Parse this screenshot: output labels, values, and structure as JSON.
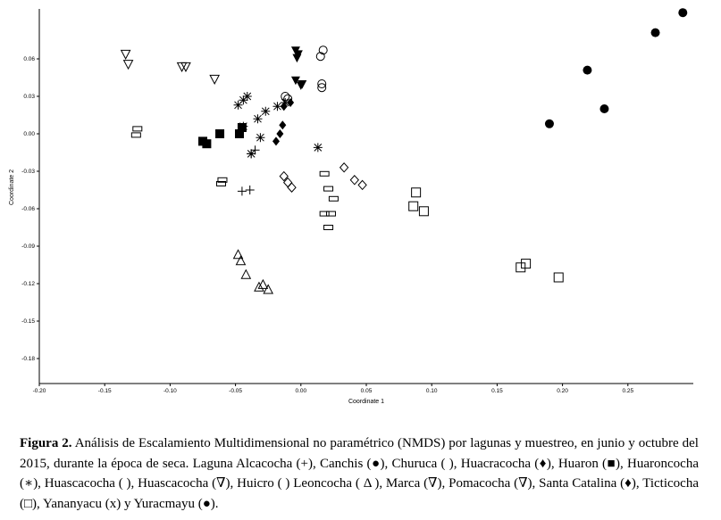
{
  "chart_data": {
    "type": "scatter",
    "title": "",
    "xlabel": "Coordinate 1",
    "ylabel": "Coordinate 2",
    "xlim": [
      -0.2,
      0.3
    ],
    "ylim": [
      -0.2,
      0.1
    ],
    "x_ticks": [
      "-0.20",
      "-0.15",
      "-0.10",
      "-0.05",
      "0.00",
      "0.05",
      "0.10",
      "0.15",
      "0.20",
      "0.25"
    ],
    "y_ticks": [
      "0.06",
      "0.03",
      "0.00",
      "-0.03",
      "-0.06",
      "-0.09",
      "-0.12",
      "-0.15",
      "-0.18"
    ],
    "series": [
      {
        "name": "Laguna Alcacocha",
        "marker": "plus",
        "points": [
          [
            -0.038,
            -0.016
          ],
          [
            -0.035,
            -0.013
          ],
          [
            -0.045,
            -0.046
          ],
          [
            -0.039,
            -0.045
          ]
        ]
      },
      {
        "name": "Canchis",
        "marker": "filled-circle",
        "points": [
          [
            0.19,
            0.008
          ],
          [
            0.219,
            0.051
          ],
          [
            0.232,
            0.02
          ],
          [
            0.271,
            0.081
          ],
          [
            0.292,
            0.097
          ]
        ]
      },
      {
        "name": "Churuca",
        "marker": "open-circle",
        "points": [
          [
            0.015,
            0.062
          ],
          [
            0.017,
            0.067
          ],
          [
            0.016,
            0.04
          ],
          [
            0.016,
            0.037
          ],
          [
            -0.012,
            0.03
          ],
          [
            -0.01,
            0.028
          ]
        ]
      },
      {
        "name": "Huacracocha",
        "marker": "filled-diamond",
        "points": [
          [
            -0.019,
            -0.006
          ],
          [
            -0.016,
            0.0
          ],
          [
            -0.014,
            0.007
          ],
          [
            -0.013,
            0.022
          ],
          [
            -0.008,
            0.025
          ]
        ]
      },
      {
        "name": "Huaron",
        "marker": "filled-square",
        "points": [
          [
            -0.075,
            -0.006
          ],
          [
            -0.072,
            -0.008
          ],
          [
            -0.062,
            0.0
          ],
          [
            -0.047,
            0.0
          ],
          [
            -0.045,
            0.005
          ]
        ]
      },
      {
        "name": "Huaroncocha",
        "marker": "asterisk",
        "points": [
          [
            -0.048,
            0.023
          ],
          [
            -0.044,
            0.027
          ],
          [
            -0.041,
            0.03
          ],
          [
            -0.033,
            0.012
          ],
          [
            -0.027,
            0.018
          ],
          [
            -0.031,
            -0.003
          ],
          [
            -0.018,
            0.022
          ],
          [
            -0.012,
            0.025
          ],
          [
            0.013,
            -0.011
          ],
          [
            -0.044,
            0.006
          ],
          [
            -0.038,
            -0.016
          ]
        ]
      },
      {
        "name": "Huascacocha",
        "marker": "open-diamond",
        "points": [
          [
            -0.013,
            -0.034
          ],
          [
            -0.01,
            -0.039
          ],
          [
            -0.007,
            -0.043
          ],
          [
            0.033,
            -0.027
          ],
          [
            0.041,
            -0.037
          ],
          [
            0.047,
            -0.041
          ]
        ]
      },
      {
        "name": "Huascacocha (∇)",
        "marker": "down-triangle",
        "points": [
          [
            -0.134,
            0.064
          ],
          [
            -0.132,
            0.056
          ],
          [
            -0.091,
            0.054
          ],
          [
            -0.088,
            0.054
          ],
          [
            -0.066,
            0.044
          ]
        ]
      },
      {
        "name": "Huicro",
        "marker": "small-rect",
        "points": [
          [
            -0.125,
            0.004
          ],
          [
            -0.126,
            -0.001
          ],
          [
            -0.06,
            -0.037
          ],
          [
            -0.061,
            -0.04
          ],
          [
            0.018,
            -0.032
          ],
          [
            0.021,
            -0.044
          ],
          [
            0.025,
            -0.052
          ],
          [
            0.018,
            -0.064
          ],
          [
            0.023,
            -0.064
          ],
          [
            0.021,
            -0.075
          ]
        ]
      },
      {
        "name": "Leoncocha",
        "marker": "open-triangle",
        "points": [
          [
            -0.048,
            -0.097
          ],
          [
            -0.046,
            -0.102
          ],
          [
            -0.042,
            -0.113
          ],
          [
            -0.032,
            -0.123
          ],
          [
            -0.029,
            -0.121
          ],
          [
            -0.025,
            -0.125
          ]
        ]
      },
      {
        "name": "Marca",
        "marker": "filled-down-triangle",
        "points": [
          [
            -0.004,
            0.067
          ],
          [
            -0.002,
            0.064
          ],
          [
            -0.003,
            0.061
          ],
          [
            -0.004,
            0.043
          ],
          [
            0.0,
            0.039
          ],
          [
            0.001,
            0.04
          ]
        ]
      },
      {
        "name": "Pomacocha",
        "marker": "down-triangle",
        "points": []
      },
      {
        "name": "Santa Catalina",
        "marker": "filled-diamond",
        "points": []
      },
      {
        "name": "Ticticocha",
        "marker": "open-square",
        "points": [
          [
            0.088,
            -0.047
          ],
          [
            0.086,
            -0.058
          ],
          [
            0.094,
            -0.062
          ],
          [
            0.168,
            -0.107
          ],
          [
            0.172,
            -0.104
          ],
          [
            0.197,
            -0.115
          ]
        ]
      },
      {
        "name": "Yananyacu",
        "marker": "x",
        "points": []
      },
      {
        "name": "Yuracmayu",
        "marker": "filled-circle",
        "points": []
      }
    ]
  },
  "caption": {
    "label": "Figura 2.",
    "text": "Análisis de Escalamiento Multidimensional no paramétrico (NMDS) por lagunas y muestreo, en junio y octubre del 2015, durante la época de seca. Laguna Alcacocha (+), Canchis (●), Churuca ( ), Huacracocha (♦), Huaron (■), Huaroncocha (∗), Huascacocha ( ), Huascacocha (∇), Huicro ( ) Leoncocha ( Δ ), Marca (∇), Pomacocha (∇), Santa Catalina (♦), Ticticocha (□), Yananyacu (x) y Yuracmayu (●)."
  }
}
